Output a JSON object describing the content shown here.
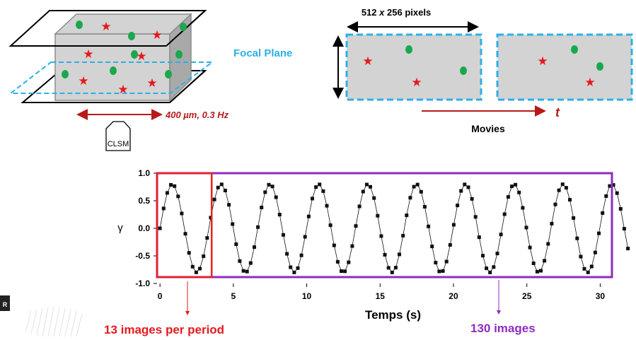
{
  "schematic": {
    "focal_plane_label": "Focal Plane",
    "scan_label": "400 µm, 0.3 Hz",
    "microscope_label": "CLSM",
    "pixels_prefix": "512",
    "pixels_x": "x",
    "pixels_suffix": "256 pixels",
    "time_label": "t",
    "movies_label": "Movies"
  },
  "chart_data": {
    "type": "scatter",
    "title": "",
    "xlabel": "Temps (s)",
    "ylabel": "γ",
    "xlim": [
      -0.2,
      30.8
    ],
    "ylim": [
      -1.0,
      1.0
    ],
    "xticks": [
      "0",
      "5",
      "10",
      "15",
      "20",
      "25",
      "30"
    ],
    "yticks": [
      "1.0",
      "0.5",
      "0.0",
      "-0.5",
      "-1.0"
    ],
    "period_s": 3.33,
    "amplitude": 0.8,
    "n_images": 130,
    "images_per_period": 13,
    "connected_line": true,
    "colors": {
      "markers": "#111111",
      "period_box": "#e8221e",
      "all_box": "#8f2bbf"
    }
  },
  "annotations": {
    "per_period": "13 images per period",
    "total": "130 images"
  },
  "colors": {
    "cell": "#d3d3d3",
    "cell_side": "#a9a9a9",
    "green_dot": "#1aa84f",
    "red_star": "#e6191e",
    "dashed_blue": "#2bb0e8",
    "dark_red": "#b81a1a",
    "purple": "#8f2bbf"
  }
}
